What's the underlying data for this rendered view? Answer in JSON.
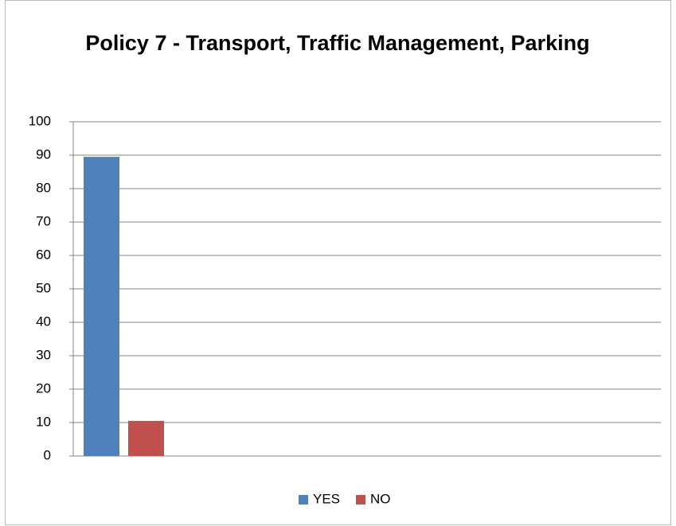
{
  "chart_data": {
    "type": "bar",
    "title": "Policy 7 - Transport, Traffic Management, Parking",
    "categories": [
      null
    ],
    "series": [
      {
        "name": "YES",
        "color": "#4f81bd",
        "values": [
          89.5
        ]
      },
      {
        "name": "NO",
        "color": "#c0504d",
        "values": [
          10.5
        ]
      }
    ],
    "ylim": [
      0,
      100
    ],
    "yticks": [
      0,
      10,
      20,
      30,
      40,
      50,
      60,
      70,
      80,
      90,
      100
    ],
    "grid": true,
    "legend": "bottom"
  }
}
